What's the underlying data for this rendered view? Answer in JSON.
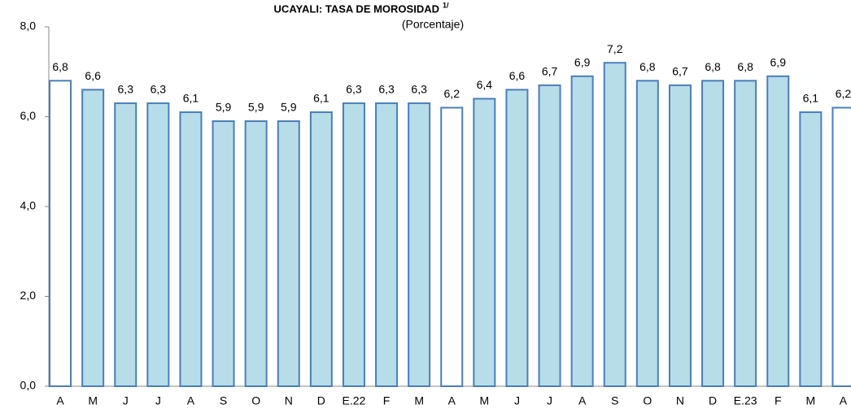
{
  "chart_data": {
    "type": "bar",
    "title": "UCAYALI: TASA DE MOROSIDAD",
    "title_note": "1/",
    "subtitle": "(Porcentaje)",
    "categories": [
      "A",
      "M",
      "J",
      "J",
      "A",
      "S",
      "O",
      "N",
      "D",
      "E.22",
      "F",
      "M",
      "A",
      "M",
      "J",
      "J",
      "A",
      "S",
      "O",
      "N",
      "D",
      "E.23",
      "F",
      "M",
      "A"
    ],
    "values": [
      6.8,
      6.6,
      6.3,
      6.3,
      6.1,
      5.9,
      5.9,
      5.9,
      6.1,
      6.3,
      6.3,
      6.3,
      6.2,
      6.4,
      6.6,
      6.7,
      6.9,
      7.2,
      6.8,
      6.7,
      6.8,
      6.8,
      6.9,
      6.1,
      6.2
    ],
    "value_labels": [
      "6,8",
      "6,6",
      "6,3",
      "6,3",
      "6,1",
      "5,9",
      "5,9",
      "5,9",
      "6,1",
      "6,3",
      "6,3",
      "6,3",
      "6,2",
      "6,4",
      "6,6",
      "6,7",
      "6,9",
      "7,2",
      "6,8",
      "6,7",
      "6,8",
      "6,8",
      "6,9",
      "6,1",
      "6,2"
    ],
    "colors": [
      "#ffffff",
      "#b7dde8",
      "#b7dde8",
      "#b7dde8",
      "#b7dde8",
      "#b7dde8",
      "#b7dde8",
      "#b7dde8",
      "#b7dde8",
      "#b7dde8",
      "#b7dde8",
      "#b7dde8",
      "#ffffff",
      "#b7dde8",
      "#b7dde8",
      "#b7dde8",
      "#b7dde8",
      "#b7dde8",
      "#b7dde8",
      "#b7dde8",
      "#b7dde8",
      "#b7dde8",
      "#b7dde8",
      "#b7dde8",
      "#ffffff"
    ],
    "edge_color": "#4a7ebb",
    "ylim": [
      0,
      8
    ],
    "yticks": [
      {
        "value": 0,
        "label": "0,0"
      },
      {
        "value": 2,
        "label": "2,0"
      },
      {
        "value": 4,
        "label": "4,0"
      },
      {
        "value": 6,
        "label": "6,0"
      },
      {
        "value": 8,
        "label": "8,0"
      }
    ],
    "grid": false
  }
}
